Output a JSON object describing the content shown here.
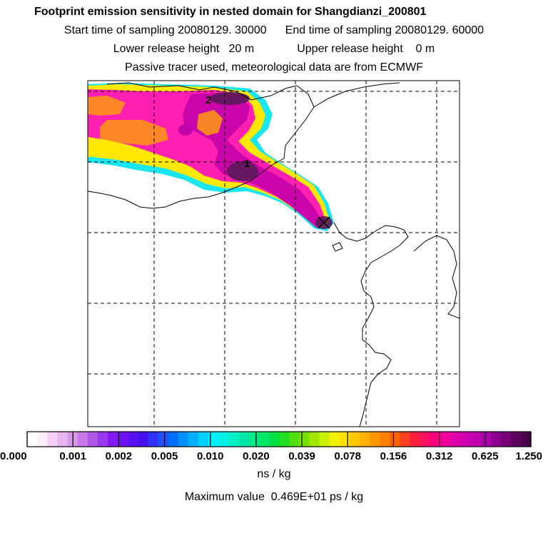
{
  "header": {
    "title": "Footprint emission sensitivity in nested domain for Shangdianzi_200801",
    "start_label": "Start time of sampling 20080129. 30000",
    "end_label": "End time of sampling 20080129. 60000",
    "lower_label": "Lower release height   20 m",
    "upper_label": "Upper release height    0 m",
    "tracer_line": "Passive tracer used, meteorological data are from ECMWF"
  },
  "map": {
    "markers": [
      {
        "id": "marker-1",
        "label": "1"
      },
      {
        "id": "marker-2",
        "label": "2"
      }
    ],
    "plume_colors": {
      "edge_cyan": "#19e6f0",
      "green": "#2fd06a",
      "yellow": "#ffe800",
      "orange": "#ff9a10",
      "magenta": "#ff1fb0",
      "purple": "#c000a8",
      "dark": "#5a1a5a"
    }
  },
  "colorbar": {
    "tick_labels": [
      "0.000",
      "0.001",
      "0.002",
      "0.005",
      "0.010",
      "0.020",
      "0.039",
      "0.078",
      "0.156",
      "0.312",
      "0.625",
      "1.250"
    ],
    "colors": [
      "#ffffff",
      "#fdf0fc",
      "#f4d0f4",
      "#eab4ee",
      "#d898e8",
      "#c878e8",
      "#b058e8",
      "#9a38ee",
      "#8418ee",
      "#7010f0",
      "#5a10f0",
      "#4410f0",
      "#3030f8",
      "#2050ff",
      "#0070ff",
      "#0090ff",
      "#00b0ff",
      "#00d0ff",
      "#00f0ff",
      "#00f0e8",
      "#00f0c8",
      "#00e8a8",
      "#00e888",
      "#00e868",
      "#00e048",
      "#20e020",
      "#50e010",
      "#78e000",
      "#a0e800",
      "#c8f000",
      "#f0f000",
      "#ffe000",
      "#ffc800",
      "#ffb000",
      "#ff9800",
      "#ff8000",
      "#ff6000",
      "#ff4020",
      "#ff2040",
      "#ff1060",
      "#ff0080",
      "#f0009a",
      "#e000a8",
      "#d000b0",
      "#c000b0",
      "#a800a8",
      "#900090",
      "#780078",
      "#600060",
      "#480048"
    ],
    "unit": "ns / kg"
  },
  "footer": {
    "max_value_text": "Maximum value  0.469E+01 ps / kg"
  }
}
